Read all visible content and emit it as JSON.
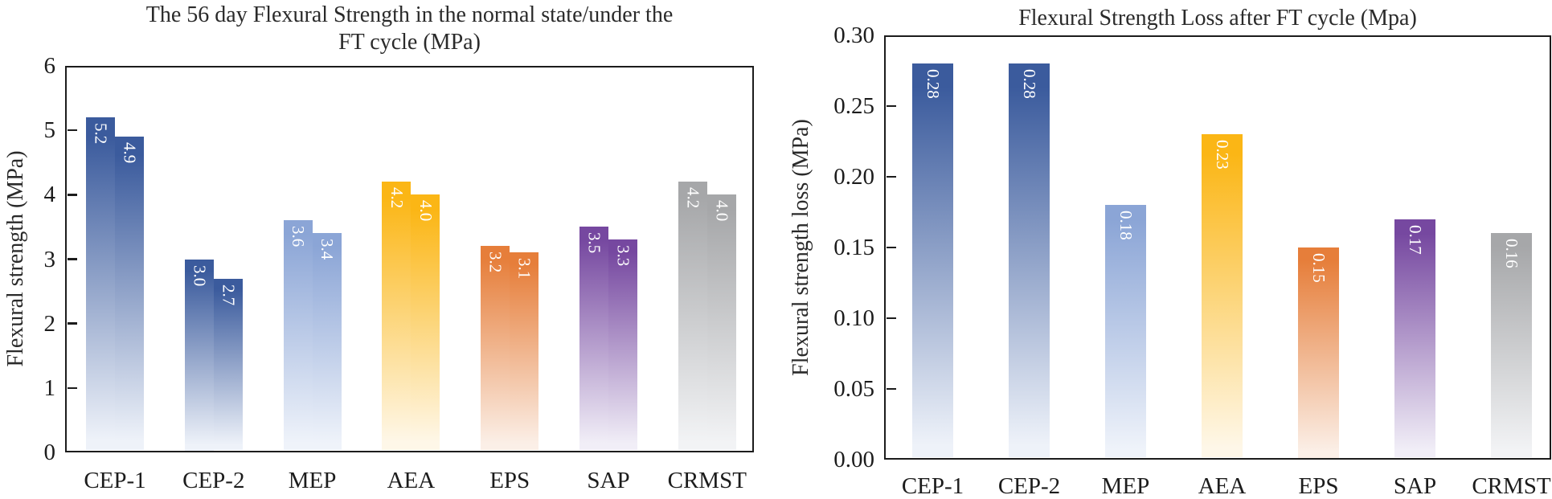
{
  "figure": {
    "background_color": "#ffffff",
    "axis_color": "#1c1c1c",
    "value_label_color": "#ffffff"
  },
  "chart_data": [
    {
      "type": "bar",
      "title": "The 56 day Flexural Strength in the normal state/under the FT cycle (MPa)",
      "title_lines": [
        "The 56 day Flexural Strength in the normal state/under the",
        "FT cycle (MPa)"
      ],
      "xlabel": "",
      "ylabel": "Flexural strength (MPa)",
      "categories": [
        "CEP-1",
        "CEP-2",
        "MEP",
        "AEA",
        "EPS",
        "SAP",
        "CRMST"
      ],
      "series": [
        {
          "name": "normal state",
          "values": [
            5.2,
            3.0,
            3.6,
            4.2,
            3.2,
            3.5,
            4.2
          ]
        },
        {
          "name": "under FT cycle",
          "values": [
            4.9,
            2.7,
            3.4,
            4.0,
            3.1,
            3.3,
            4.0
          ]
        }
      ],
      "value_labels": [
        [
          "5.2",
          "4.9"
        ],
        [
          "3.0",
          "2.7"
        ],
        [
          "3.6",
          "3.4"
        ],
        [
          "4.2",
          "4.0"
        ],
        [
          "3.2",
          "3.1"
        ],
        [
          "3.5",
          "3.3"
        ],
        [
          "4.2",
          "4.0"
        ]
      ],
      "ylim": [
        0,
        6
      ],
      "ytick_labels": [
        "0",
        "1",
        "2",
        "3",
        "4",
        "5",
        "6"
      ],
      "grid": false,
      "legend": "none",
      "bar_colors": [
        "#3B5B9D",
        "#3B5B9D",
        "#8BA5D6",
        "#FBB615",
        "#E67E3A",
        "#7648A0",
        "#A6A7A9"
      ],
      "bar_fade_colors": [
        "#EEF2F9",
        "#EEF2F9",
        "#EFF3FA",
        "#FEF7E8",
        "#FBEFE7",
        "#F1EEF7",
        "#F2F3F5"
      ]
    },
    {
      "type": "bar",
      "title": "Flexural Strength Loss after FT cycle (Mpa)",
      "title_lines": [
        "Flexural Strength Loss after FT cycle (Mpa)"
      ],
      "xlabel": "",
      "ylabel": "Flexural strength loss (MPa)",
      "categories": [
        "CEP-1",
        "CEP-2",
        "MEP",
        "AEA",
        "EPS",
        "SAP",
        "CRMST"
      ],
      "series": [
        {
          "name": "strength loss",
          "values": [
            0.28,
            0.28,
            0.18,
            0.23,
            0.15,
            0.17,
            0.16
          ]
        }
      ],
      "value_labels": [
        [
          "0.28"
        ],
        [
          "0.28"
        ],
        [
          "0.18"
        ],
        [
          "0.23"
        ],
        [
          "0.15"
        ],
        [
          "0.17"
        ],
        [
          "0.16"
        ]
      ],
      "ylim": [
        0,
        0.3
      ],
      "ytick_labels": [
        "0.00",
        "0.05",
        "0.10",
        "0.15",
        "0.20",
        "0.25",
        "0.30"
      ],
      "grid": false,
      "legend": "none",
      "bar_colors": [
        "#3B5B9D",
        "#3B5B9D",
        "#8BA5D6",
        "#FBB615",
        "#E67E3A",
        "#7648A0",
        "#A6A7A9"
      ],
      "bar_fade_colors": [
        "#EEF2F9",
        "#EEF2F9",
        "#EFF3FA",
        "#FEF7E8",
        "#FBEFE7",
        "#F1EEF7",
        "#F2F3F5"
      ]
    }
  ]
}
